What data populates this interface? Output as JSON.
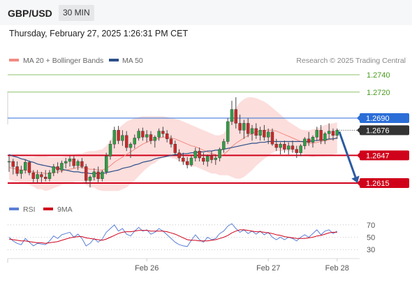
{
  "header": {
    "symbol": "GBP/USD",
    "timeframe": "30 MIN",
    "datetime": "Thursday, February 27, 2025 1:26:31 PM CET"
  },
  "legend": {
    "items": [
      {
        "label": "MA 20 + Bollinger Bands",
        "color": "#f28b82"
      },
      {
        "label": "MA 50",
        "color": "#2c4f8a"
      }
    ],
    "copyright": "Research © 2025 Trading Central"
  },
  "rsi_legend": {
    "items": [
      {
        "label": "RSI",
        "color": "#5b7fd6"
      },
      {
        "label": "9MA",
        "color": "#d0021b"
      }
    ]
  },
  "levels": [
    {
      "value": 1.274,
      "label": "1.2740",
      "style": "green-line"
    },
    {
      "value": 1.272,
      "label": "1.2720",
      "style": "green-line"
    },
    {
      "value": 1.269,
      "label": "1.2690",
      "style": "blue-badge"
    },
    {
      "value": 1.2676,
      "label": "1.2676",
      "style": "current-price"
    },
    {
      "value": 1.2647,
      "label": "1.2647",
      "style": "red-line"
    },
    {
      "value": 1.2615,
      "label": "1.2615",
      "style": "red-line"
    }
  ],
  "colors": {
    "up_candle": "#2f9e44",
    "down_candle": "#c92a2a",
    "green_level": "#8dc26f",
    "green_label": "#4a9a1e",
    "blue_level": "#2b6ed8",
    "red_level": "#d0021b",
    "current_price": "#333333",
    "arrow": "#2c5aa0",
    "bollinger_fill": "#fbd3d0",
    "ma20": "#f28b82",
    "ma50": "#2c4f8a"
  },
  "chart_data": {
    "type": "candlestick",
    "title": "",
    "x_ticks": [
      "Feb 26",
      "Feb 27",
      "Feb 28"
    ],
    "ylim": [
      1.26,
      1.2755
    ],
    "rsi_ticks": [
      70,
      50,
      30
    ],
    "rsi_ylim": [
      20,
      80
    ],
    "forecast_arrow": {
      "from": 1.2676,
      "to": 1.2615
    },
    "candles": [
      [
        1.264,
        1.2646,
        1.2628,
        1.264
      ],
      [
        1.264,
        1.2643,
        1.2625,
        1.2634
      ],
      [
        1.2634,
        1.264,
        1.2623,
        1.2626
      ],
      [
        1.2626,
        1.2635,
        1.262,
        1.263
      ],
      [
        1.263,
        1.2642,
        1.2626,
        1.2639
      ],
      [
        1.2639,
        1.2641,
        1.2624,
        1.2627
      ],
      [
        1.2627,
        1.263,
        1.2616,
        1.262
      ],
      [
        1.262,
        1.263,
        1.2615,
        1.2625
      ],
      [
        1.2625,
        1.2628,
        1.2616,
        1.2622
      ],
      [
        1.2622,
        1.263,
        1.2617,
        1.262
      ],
      [
        1.262,
        1.263,
        1.2617,
        1.2627
      ],
      [
        1.2627,
        1.2637,
        1.2623,
        1.2634
      ],
      [
        1.2634,
        1.2639,
        1.2626,
        1.263
      ],
      [
        1.263,
        1.2641,
        1.2627,
        1.2638
      ],
      [
        1.2638,
        1.2644,
        1.2632,
        1.264
      ],
      [
        1.264,
        1.2646,
        1.2634,
        1.2643
      ],
      [
        1.2643,
        1.2646,
        1.2632,
        1.2635
      ],
      [
        1.2635,
        1.2642,
        1.263,
        1.264
      ],
      [
        1.264,
        1.2644,
        1.2632,
        1.2634
      ],
      [
        1.2634,
        1.2637,
        1.2614,
        1.2618
      ],
      [
        1.2618,
        1.2624,
        1.261,
        1.2622
      ],
      [
        1.2622,
        1.2632,
        1.2618,
        1.2628
      ],
      [
        1.2628,
        1.2634,
        1.2616,
        1.262
      ],
      [
        1.262,
        1.263,
        1.2617,
        1.2628
      ],
      [
        1.2628,
        1.265,
        1.2625,
        1.2646
      ],
      [
        1.2646,
        1.2664,
        1.2642,
        1.266
      ],
      [
        1.266,
        1.268,
        1.2655,
        1.2676
      ],
      [
        1.2676,
        1.2681,
        1.266,
        1.2664
      ],
      [
        1.2664,
        1.2676,
        1.2658,
        1.267
      ],
      [
        1.267,
        1.2675,
        1.2652,
        1.2656
      ],
      [
        1.2656,
        1.2662,
        1.2644,
        1.266
      ],
      [
        1.266,
        1.2671,
        1.2655,
        1.2667
      ],
      [
        1.2667,
        1.2678,
        1.2664,
        1.2675
      ],
      [
        1.2675,
        1.2679,
        1.2664,
        1.2668
      ],
      [
        1.2668,
        1.2676,
        1.2662,
        1.2671
      ],
      [
        1.2671,
        1.2675,
        1.266,
        1.2664
      ],
      [
        1.2664,
        1.267,
        1.2656,
        1.2668
      ],
      [
        1.2668,
        1.2678,
        1.2664,
        1.2675
      ],
      [
        1.2675,
        1.268,
        1.2668,
        1.2672
      ],
      [
        1.2672,
        1.2676,
        1.2662,
        1.2666
      ],
      [
        1.2666,
        1.267,
        1.2656,
        1.266
      ],
      [
        1.266,
        1.2664,
        1.2647,
        1.265
      ],
      [
        1.265,
        1.2654,
        1.264,
        1.2644
      ],
      [
        1.2644,
        1.265,
        1.2636,
        1.264
      ],
      [
        1.264,
        1.2645,
        1.2632,
        1.2636
      ],
      [
        1.2636,
        1.2647,
        1.2634,
        1.2644
      ],
      [
        1.2644,
        1.2656,
        1.264,
        1.2652
      ],
      [
        1.2652,
        1.2656,
        1.264,
        1.2644
      ],
      [
        1.2644,
        1.265,
        1.2636,
        1.264
      ],
      [
        1.264,
        1.2648,
        1.2634,
        1.2646
      ],
      [
        1.2646,
        1.2652,
        1.2638,
        1.2642
      ],
      [
        1.2642,
        1.2648,
        1.2636,
        1.2644
      ],
      [
        1.2644,
        1.2656,
        1.264,
        1.2654
      ],
      [
        1.2654,
        1.2666,
        1.265,
        1.2663
      ],
      [
        1.2663,
        1.269,
        1.266,
        1.2686
      ],
      [
        1.2686,
        1.271,
        1.2682,
        1.27
      ],
      [
        1.27,
        1.2714,
        1.2678,
        1.2684
      ],
      [
        1.2684,
        1.2694,
        1.2672,
        1.2676
      ],
      [
        1.2676,
        1.2688,
        1.2666,
        1.2684
      ],
      [
        1.2684,
        1.269,
        1.2668,
        1.2672
      ],
      [
        1.2672,
        1.2682,
        1.2664,
        1.2678
      ],
      [
        1.2678,
        1.2684,
        1.2666,
        1.267
      ],
      [
        1.267,
        1.268,
        1.2664,
        1.2676
      ],
      [
        1.2676,
        1.2682,
        1.2664,
        1.2668
      ],
      [
        1.2668,
        1.2678,
        1.266,
        1.2674
      ],
      [
        1.2674,
        1.2678,
        1.2658,
        1.266
      ],
      [
        1.266,
        1.2666,
        1.2652,
        1.2656
      ],
      [
        1.2656,
        1.2662,
        1.2648,
        1.266
      ],
      [
        1.266,
        1.2664,
        1.265,
        1.2654
      ],
      [
        1.2654,
        1.2662,
        1.2648,
        1.2658
      ],
      [
        1.2658,
        1.2664,
        1.265,
        1.2654
      ],
      [
        1.2654,
        1.2658,
        1.2644,
        1.265
      ],
      [
        1.265,
        1.266,
        1.2646,
        1.2658
      ],
      [
        1.2658,
        1.2668,
        1.2654,
        1.2666
      ],
      [
        1.2666,
        1.2674,
        1.2658,
        1.2662
      ],
      [
        1.2662,
        1.267,
        1.2656,
        1.2668
      ],
      [
        1.2668,
        1.268,
        1.2664,
        1.2676
      ],
      [
        1.2676,
        1.2682,
        1.266,
        1.2664
      ],
      [
        1.2664,
        1.2674,
        1.266,
        1.2672
      ],
      [
        1.2672,
        1.2684,
        1.2666,
        1.2675
      ],
      [
        1.2675,
        1.2678,
        1.2664,
        1.267
      ],
      [
        1.267,
        1.2678,
        1.2666,
        1.2676
      ]
    ],
    "ma20": [
      1.2633,
      1.2632,
      1.2631,
      1.263,
      1.263,
      1.2629,
      1.2628,
      1.2627,
      1.2627,
      1.2626,
      1.2626,
      1.2627,
      1.2628,
      1.2629,
      1.263,
      1.2631,
      1.2632,
      1.2633,
      1.2633,
      1.2632,
      1.2631,
      1.2631,
      1.263,
      1.263,
      1.2632,
      1.2635,
      1.2639,
      1.2642,
      1.2645,
      1.2648,
      1.2651,
      1.2654,
      1.2657,
      1.266,
      1.2662,
      1.2664,
      1.2665,
      1.2667,
      1.2668,
      1.2668,
      1.2667,
      1.2666,
      1.2664,
      1.2662,
      1.266,
      1.2658,
      1.2657,
      1.2655,
      1.2653,
      1.2651,
      1.2649,
      1.2648,
      1.2647,
      1.2648,
      1.2652,
      1.2657,
      1.2661,
      1.2664,
      1.2667,
      1.267,
      1.2672,
      1.2674,
      1.2675,
      1.2676,
      1.2676,
      1.2676,
      1.2675,
      1.2673,
      1.2671,
      1.2669,
      1.2667,
      1.2665,
      1.2663,
      1.2662,
      1.2661,
      1.2661,
      1.2662,
      1.2663,
      1.2664,
      1.2665,
      1.2666,
      1.2667
    ],
    "bb_upper": [
      1.2647,
      1.2646,
      1.2645,
      1.2645,
      1.2645,
      1.2645,
      1.2645,
      1.2646,
      1.2646,
      1.2646,
      1.2645,
      1.2645,
      1.2645,
      1.2645,
      1.2646,
      1.2647,
      1.2648,
      1.2649,
      1.2649,
      1.2651,
      1.2652,
      1.2652,
      1.2653,
      1.2654,
      1.2658,
      1.2664,
      1.2672,
      1.2678,
      1.2682,
      1.2686,
      1.2688,
      1.269,
      1.2691,
      1.2692,
      1.2692,
      1.2692,
      1.2692,
      1.2692,
      1.2692,
      1.2691,
      1.269,
      1.2689,
      1.2688,
      1.2686,
      1.2684,
      1.2682,
      1.268,
      1.2678,
      1.2676,
      1.2674,
      1.2672,
      1.267,
      1.267,
      1.2672,
      1.268,
      1.2692,
      1.2702,
      1.2708,
      1.2712,
      1.2714,
      1.2714,
      1.2713,
      1.2711,
      1.2709,
      1.2706,
      1.2702,
      1.2698,
      1.2694,
      1.269,
      1.2686,
      1.2683,
      1.268,
      1.2677,
      1.2676,
      1.2676,
      1.2677,
      1.2678,
      1.268,
      1.2682,
      1.2683,
      1.2684,
      1.2685
    ],
    "bb_lower": [
      1.2619,
      1.2618,
      1.2617,
      1.2615,
      1.2615,
      1.2613,
      1.2611,
      1.2608,
      1.2608,
      1.2606,
      1.2607,
      1.2609,
      1.2611,
      1.2613,
      1.2614,
      1.2615,
      1.2616,
      1.2617,
      1.2617,
      1.2613,
      1.261,
      1.261,
      1.2607,
      1.2606,
      1.2606,
      1.2606,
      1.2606,
      1.2606,
      1.2608,
      1.261,
      1.2614,
      1.2618,
      1.2623,
      1.2628,
      1.2632,
      1.2636,
      1.2638,
      1.2642,
      1.2644,
      1.2645,
      1.2644,
      1.2643,
      1.264,
      1.2638,
      1.2636,
      1.2634,
      1.2634,
      1.2632,
      1.263,
      1.2628,
      1.2626,
      1.2626,
      1.2624,
      1.2624,
      1.2624,
      1.2622,
      1.262,
      1.262,
      1.2622,
      1.2626,
      1.263,
      1.2635,
      1.2639,
      1.2643,
      1.2646,
      1.265,
      1.2652,
      1.2652,
      1.2652,
      1.2652,
      1.2651,
      1.265,
      1.2649,
      1.2648,
      1.2646,
      1.2645,
      1.2646,
      1.2646,
      1.2646,
      1.2647,
      1.2648,
      1.2649
    ],
    "ma50": [
      1.2648,
      1.2646,
      1.2645,
      1.2643,
      1.2642,
      1.264,
      1.2639,
      1.2637,
      1.2636,
      1.2635,
      1.2634,
      1.2633,
      1.2632,
      1.2631,
      1.263,
      1.2629,
      1.2628,
      1.2628,
      1.2627,
      1.2627,
      1.2626,
      1.2626,
      1.2626,
      1.2626,
      1.2627,
      1.2628,
      1.2629,
      1.263,
      1.2632,
      1.2633,
      1.2634,
      1.2636,
      1.2637,
      1.2639,
      1.264,
      1.2641,
      1.2643,
      1.2644,
      1.2645,
      1.2646,
      1.2647,
      1.2648,
      1.2648,
      1.2649,
      1.2649,
      1.265,
      1.265,
      1.2651,
      1.2651,
      1.2652,
      1.2652,
      1.2653,
      1.2653,
      1.2654,
      1.2655,
      1.2656,
      1.2657,
      1.2658,
      1.2659,
      1.266,
      1.2661,
      1.2661,
      1.2662,
      1.2662,
      1.2663,
      1.2663,
      1.2663,
      1.2663,
      1.2663,
      1.2663,
      1.2663,
      1.2663,
      1.2663,
      1.2663,
      1.2663,
      1.2664,
      1.2664,
      1.2665,
      1.2665,
      1.2666,
      1.2666,
      1.2667
    ],
    "rsi": [
      50,
      44,
      40,
      38,
      48,
      42,
      36,
      40,
      39,
      38,
      44,
      52,
      48,
      54,
      56,
      58,
      50,
      55,
      48,
      36,
      40,
      48,
      42,
      47,
      58,
      64,
      70,
      60,
      64,
      55,
      52,
      60,
      66,
      60,
      62,
      55,
      58,
      64,
      60,
      54,
      48,
      42,
      38,
      36,
      35,
      45,
      54,
      46,
      42,
      50,
      46,
      48,
      56,
      60,
      68,
      72,
      64,
      58,
      62,
      56,
      60,
      55,
      60,
      54,
      58,
      50,
      46,
      50,
      46,
      50,
      48,
      44,
      50,
      54,
      50,
      56,
      62,
      54,
      60,
      62,
      56,
      60
    ],
    "rsi_ma": [
      47,
      46,
      45,
      44,
      44,
      43,
      42,
      41,
      41,
      40,
      41,
      42,
      43,
      45,
      47,
      49,
      50,
      51,
      51,
      49,
      48,
      47,
      46,
      45,
      47,
      50,
      53,
      56,
      58,
      59,
      59,
      60,
      61,
      61,
      61,
      60,
      60,
      60,
      60,
      59,
      57,
      55,
      52,
      49,
      46,
      45,
      45,
      44,
      44,
      44,
      45,
      46,
      48,
      50,
      53,
      57,
      60,
      62,
      62,
      61,
      60,
      59,
      59,
      58,
      57,
      56,
      54,
      53,
      51,
      50,
      49,
      48,
      48,
      48,
      49,
      50,
      52,
      53,
      55,
      57,
      58,
      58
    ]
  }
}
